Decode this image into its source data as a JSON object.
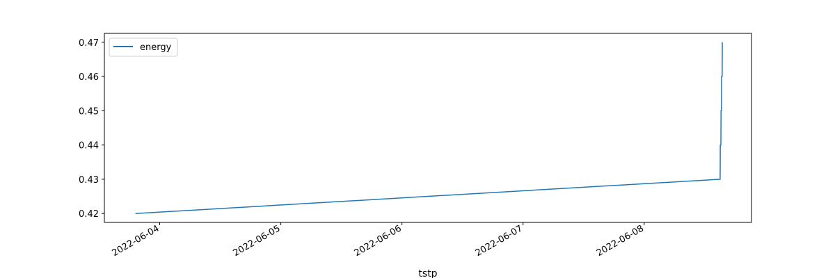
{
  "chart_data": {
    "type": "line",
    "xlabel": "tstp",
    "ylabel": "",
    "x_ticks": [
      "2022-06-04",
      "2022-06-05",
      "2022-06-06",
      "2022-06-07",
      "2022-06-08"
    ],
    "y_ticks": [
      "0.42",
      "0.43",
      "0.44",
      "0.45",
      "0.46",
      "0.47"
    ],
    "xlim": [
      "2022-06-03T13:02",
      "2022-06-08T21:16"
    ],
    "ylim": [
      0.4174,
      0.4726
    ],
    "grid": false,
    "legend_position": "top-left",
    "series": [
      {
        "name": "energy",
        "color": "#1f77b4",
        "points": [
          {
            "x": "2022-06-03T19:12",
            "y": 0.42
          },
          {
            "x": "2022-06-08T15:03",
            "y": 0.43
          },
          {
            "x": "2022-06-08T15:05",
            "y": 0.44
          },
          {
            "x": "2022-06-08T15:12",
            "y": 0.44
          },
          {
            "x": "2022-06-08T15:14",
            "y": 0.45
          },
          {
            "x": "2022-06-08T15:19",
            "y": 0.45
          },
          {
            "x": "2022-06-08T15:21",
            "y": 0.46
          },
          {
            "x": "2022-06-08T15:27",
            "y": 0.46
          },
          {
            "x": "2022-06-08T15:29",
            "y": 0.47
          }
        ]
      }
    ]
  }
}
